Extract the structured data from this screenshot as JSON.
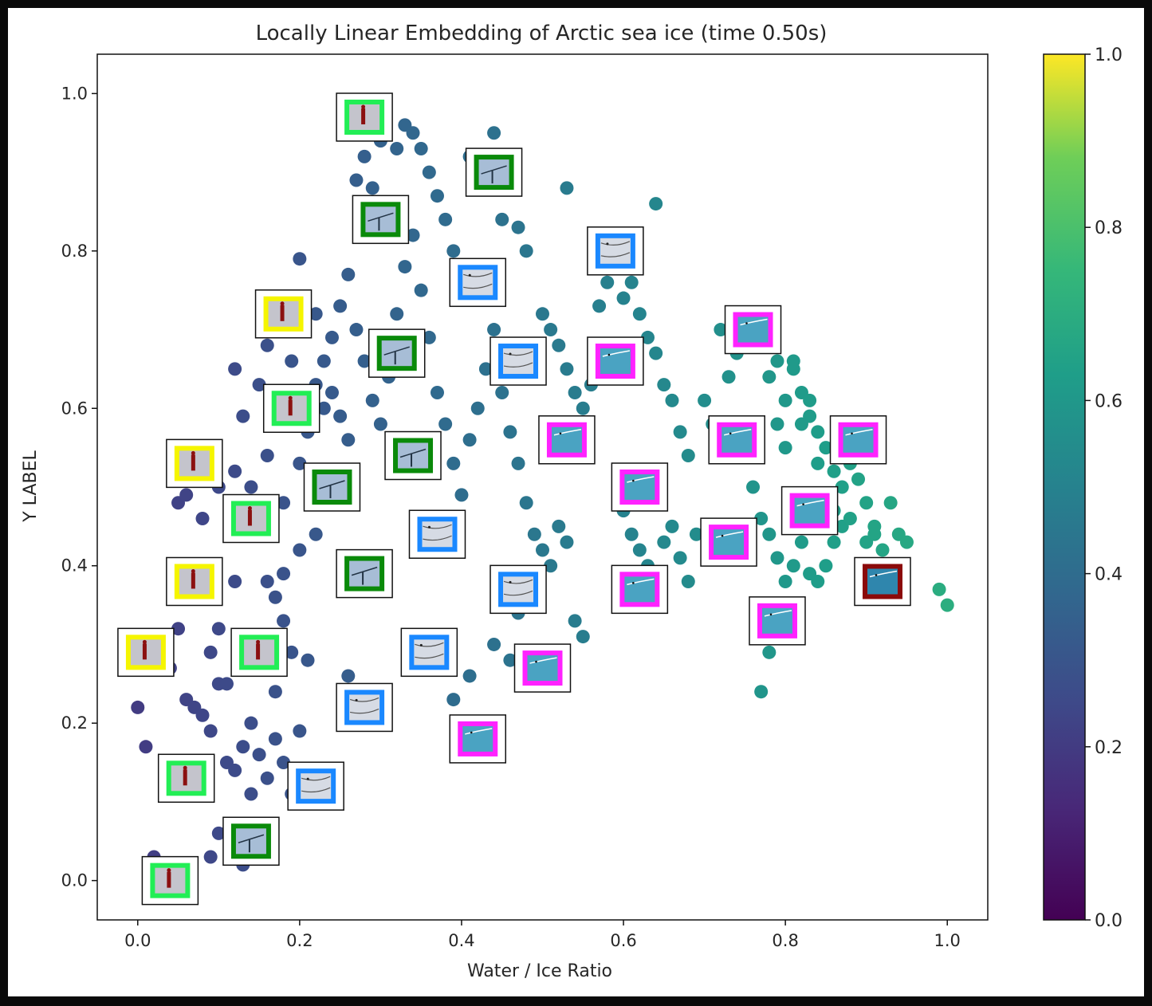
{
  "chart_data": {
    "type": "scatter",
    "title": "Locally Linear Embedding of Arctic sea ice (time 0.50s)",
    "xlabel": "Water / Ice Ratio",
    "ylabel": "Y LABEL",
    "xlim": [
      -0.05,
      1.05
    ],
    "ylim": [
      -0.05,
      1.05
    ],
    "xticks": [
      "0.0",
      "0.2",
      "0.4",
      "0.6",
      "0.8",
      "1.0"
    ],
    "yticks": [
      "0.0",
      "0.2",
      "0.4",
      "0.6",
      "0.8",
      "1.0"
    ],
    "colormap": "viridis",
    "colorbar": {
      "range": [
        0,
        1
      ],
      "ticks": [
        "0.0",
        "0.2",
        "0.4",
        "0.6",
        "0.8",
        "1.0"
      ]
    },
    "grid": false,
    "legend": "none",
    "thumbnail_kinds": {
      "person-green": {
        "frame": "#22ee55",
        "bg": "#c4c4cc",
        "figure": "#8b1010"
      },
      "person-yellow": {
        "frame": "#f5f500",
        "bg": "#c4c4cc",
        "figure": "#8b1010"
      },
      "seal-darkgreen": {
        "frame": "#0a8a0a",
        "bg": "#a7bdd6",
        "figure": "#223344"
      },
      "ice-blue": {
        "frame": "#1a88ff",
        "bg": "#d6dbe4",
        "figure": "#555555"
      },
      "water-magenta": {
        "frame": "#ff22ff",
        "bg": "#4aa3c2",
        "figure": "#ffffff"
      },
      "water-maroon": {
        "frame": "#8b0a0a",
        "bg": "#2f86ad",
        "figure": "#ffffff"
      }
    },
    "thumbnails": [
      {
        "x": 0.28,
        "y": 0.97,
        "kind": "person-green"
      },
      {
        "x": 0.44,
        "y": 0.9,
        "kind": "seal-darkgreen"
      },
      {
        "x": 0.3,
        "y": 0.84,
        "kind": "seal-darkgreen"
      },
      {
        "x": 0.59,
        "y": 0.8,
        "kind": "ice-blue"
      },
      {
        "x": 0.42,
        "y": 0.76,
        "kind": "ice-blue"
      },
      {
        "x": 0.18,
        "y": 0.72,
        "kind": "person-yellow"
      },
      {
        "x": 0.76,
        "y": 0.7,
        "kind": "water-magenta"
      },
      {
        "x": 0.32,
        "y": 0.67,
        "kind": "seal-darkgreen"
      },
      {
        "x": 0.59,
        "y": 0.66,
        "kind": "water-magenta"
      },
      {
        "x": 0.47,
        "y": 0.66,
        "kind": "ice-blue"
      },
      {
        "x": 0.19,
        "y": 0.6,
        "kind": "person-green"
      },
      {
        "x": 0.53,
        "y": 0.56,
        "kind": "water-magenta"
      },
      {
        "x": 0.74,
        "y": 0.56,
        "kind": "water-magenta"
      },
      {
        "x": 0.89,
        "y": 0.56,
        "kind": "water-magenta"
      },
      {
        "x": 0.07,
        "y": 0.53,
        "kind": "person-yellow"
      },
      {
        "x": 0.34,
        "y": 0.54,
        "kind": "seal-darkgreen"
      },
      {
        "x": 0.24,
        "y": 0.5,
        "kind": "seal-darkgreen"
      },
      {
        "x": 0.62,
        "y": 0.5,
        "kind": "water-magenta"
      },
      {
        "x": 0.83,
        "y": 0.47,
        "kind": "water-magenta"
      },
      {
        "x": 0.14,
        "y": 0.46,
        "kind": "person-green"
      },
      {
        "x": 0.37,
        "y": 0.44,
        "kind": "ice-blue"
      },
      {
        "x": 0.73,
        "y": 0.43,
        "kind": "water-magenta"
      },
      {
        "x": 0.28,
        "y": 0.39,
        "kind": "seal-darkgreen"
      },
      {
        "x": 0.92,
        "y": 0.38,
        "kind": "water-maroon"
      },
      {
        "x": 0.07,
        "y": 0.38,
        "kind": "person-yellow"
      },
      {
        "x": 0.47,
        "y": 0.37,
        "kind": "ice-blue"
      },
      {
        "x": 0.62,
        "y": 0.37,
        "kind": "water-magenta"
      },
      {
        "x": 0.79,
        "y": 0.33,
        "kind": "water-magenta"
      },
      {
        "x": 0.01,
        "y": 0.29,
        "kind": "person-yellow"
      },
      {
        "x": 0.36,
        "y": 0.29,
        "kind": "ice-blue"
      },
      {
        "x": 0.15,
        "y": 0.29,
        "kind": "person-green"
      },
      {
        "x": 0.5,
        "y": 0.27,
        "kind": "water-magenta"
      },
      {
        "x": 0.28,
        "y": 0.22,
        "kind": "ice-blue"
      },
      {
        "x": 0.42,
        "y": 0.18,
        "kind": "water-magenta"
      },
      {
        "x": 0.06,
        "y": 0.13,
        "kind": "person-green"
      },
      {
        "x": 0.22,
        "y": 0.12,
        "kind": "ice-blue"
      },
      {
        "x": 0.14,
        "y": 0.05,
        "kind": "seal-darkgreen"
      },
      {
        "x": 0.04,
        "y": 0.0,
        "kind": "person-green"
      }
    ],
    "points": [
      [
        0.0,
        0.22
      ],
      [
        0.01,
        0.17
      ],
      [
        0.04,
        0.27
      ],
      [
        0.05,
        0.32
      ],
      [
        0.06,
        0.23
      ],
      [
        0.07,
        0.22
      ],
      [
        0.08,
        0.21
      ],
      [
        0.09,
        0.19
      ],
      [
        0.1,
        0.25
      ],
      [
        0.11,
        0.15
      ],
      [
        0.12,
        0.14
      ],
      [
        0.13,
        0.17
      ],
      [
        0.14,
        0.2
      ],
      [
        0.15,
        0.16
      ],
      [
        0.16,
        0.13
      ],
      [
        0.17,
        0.18
      ],
      [
        0.18,
        0.15
      ],
      [
        0.19,
        0.11
      ],
      [
        0.2,
        0.19
      ],
      [
        0.14,
        0.11
      ],
      [
        0.1,
        0.06
      ],
      [
        0.09,
        0.03
      ],
      [
        0.13,
        0.02
      ],
      [
        0.02,
        0.03
      ],
      [
        0.09,
        0.29
      ],
      [
        0.1,
        0.32
      ],
      [
        0.11,
        0.25
      ],
      [
        0.13,
        0.3
      ],
      [
        0.15,
        0.27
      ],
      [
        0.17,
        0.24
      ],
      [
        0.19,
        0.29
      ],
      [
        0.21,
        0.28
      ],
      [
        0.18,
        0.33
      ],
      [
        0.16,
        0.38
      ],
      [
        0.12,
        0.38
      ],
      [
        0.17,
        0.36
      ],
      [
        0.18,
        0.39
      ],
      [
        0.2,
        0.42
      ],
      [
        0.22,
        0.44
      ],
      [
        0.05,
        0.48
      ],
      [
        0.06,
        0.49
      ],
      [
        0.08,
        0.46
      ],
      [
        0.1,
        0.5
      ],
      [
        0.12,
        0.52
      ],
      [
        0.14,
        0.5
      ],
      [
        0.16,
        0.54
      ],
      [
        0.18,
        0.48
      ],
      [
        0.2,
        0.53
      ],
      [
        0.21,
        0.57
      ],
      [
        0.13,
        0.59
      ],
      [
        0.12,
        0.65
      ],
      [
        0.15,
        0.63
      ],
      [
        0.16,
        0.68
      ],
      [
        0.19,
        0.66
      ],
      [
        0.2,
        0.79
      ],
      [
        0.22,
        0.72
      ],
      [
        0.23,
        0.66
      ],
      [
        0.24,
        0.62
      ],
      [
        0.25,
        0.59
      ],
      [
        0.26,
        0.56
      ],
      [
        0.23,
        0.6
      ],
      [
        0.22,
        0.63
      ],
      [
        0.24,
        0.69
      ],
      [
        0.25,
        0.73
      ],
      [
        0.26,
        0.77
      ],
      [
        0.27,
        0.7
      ],
      [
        0.28,
        0.66
      ],
      [
        0.29,
        0.61
      ],
      [
        0.3,
        0.58
      ],
      [
        0.31,
        0.64
      ],
      [
        0.32,
        0.72
      ],
      [
        0.33,
        0.78
      ],
      [
        0.34,
        0.82
      ],
      [
        0.35,
        0.75
      ],
      [
        0.36,
        0.69
      ],
      [
        0.37,
        0.62
      ],
      [
        0.38,
        0.58
      ],
      [
        0.39,
        0.53
      ],
      [
        0.4,
        0.49
      ],
      [
        0.41,
        0.56
      ],
      [
        0.42,
        0.6
      ],
      [
        0.43,
        0.65
      ],
      [
        0.44,
        0.7
      ],
      [
        0.45,
        0.62
      ],
      [
        0.46,
        0.57
      ],
      [
        0.47,
        0.53
      ],
      [
        0.48,
        0.48
      ],
      [
        0.49,
        0.44
      ],
      [
        0.5,
        0.42
      ],
      [
        0.51,
        0.4
      ],
      [
        0.52,
        0.45
      ],
      [
        0.53,
        0.43
      ],
      [
        0.54,
        0.33
      ],
      [
        0.55,
        0.31
      ],
      [
        0.44,
        0.3
      ],
      [
        0.47,
        0.34
      ],
      [
        0.46,
        0.28
      ],
      [
        0.39,
        0.23
      ],
      [
        0.41,
        0.26
      ],
      [
        0.26,
        0.26
      ],
      [
        0.27,
        0.89
      ],
      [
        0.28,
        0.92
      ],
      [
        0.29,
        0.88
      ],
      [
        0.3,
        0.94
      ],
      [
        0.32,
        0.93
      ],
      [
        0.33,
        0.96
      ],
      [
        0.34,
        0.95
      ],
      [
        0.35,
        0.93
      ],
      [
        0.36,
        0.9
      ],
      [
        0.37,
        0.87
      ],
      [
        0.38,
        0.84
      ],
      [
        0.39,
        0.8
      ],
      [
        0.4,
        0.77
      ],
      [
        0.41,
        0.92
      ],
      [
        0.43,
        0.88
      ],
      [
        0.44,
        0.95
      ],
      [
        0.45,
        0.84
      ],
      [
        0.47,
        0.83
      ],
      [
        0.48,
        0.8
      ],
      [
        0.5,
        0.72
      ],
      [
        0.51,
        0.7
      ],
      [
        0.52,
        0.68
      ],
      [
        0.53,
        0.65
      ],
      [
        0.54,
        0.62
      ],
      [
        0.55,
        0.6
      ],
      [
        0.56,
        0.63
      ],
      [
        0.57,
        0.67
      ],
      [
        0.53,
        0.88
      ],
      [
        0.57,
        0.73
      ],
      [
        0.58,
        0.76
      ],
      [
        0.6,
        0.74
      ],
      [
        0.61,
        0.76
      ],
      [
        0.62,
        0.72
      ],
      [
        0.63,
        0.69
      ],
      [
        0.64,
        0.67
      ],
      [
        0.65,
        0.63
      ],
      [
        0.66,
        0.61
      ],
      [
        0.67,
        0.57
      ],
      [
        0.68,
        0.54
      ],
      [
        0.64,
        0.86
      ],
      [
        0.6,
        0.47
      ],
      [
        0.61,
        0.44
      ],
      [
        0.62,
        0.42
      ],
      [
        0.63,
        0.4
      ],
      [
        0.64,
        0.37
      ],
      [
        0.65,
        0.43
      ],
      [
        0.66,
        0.45
      ],
      [
        0.67,
        0.41
      ],
      [
        0.68,
        0.38
      ],
      [
        0.69,
        0.44
      ],
      [
        0.7,
        0.61
      ],
      [
        0.71,
        0.58
      ],
      [
        0.72,
        0.7
      ],
      [
        0.73,
        0.64
      ],
      [
        0.74,
        0.67
      ],
      [
        0.75,
        0.55
      ],
      [
        0.76,
        0.5
      ],
      [
        0.77,
        0.46
      ],
      [
        0.78,
        0.44
      ],
      [
        0.79,
        0.41
      ],
      [
        0.8,
        0.38
      ],
      [
        0.81,
        0.4
      ],
      [
        0.82,
        0.43
      ],
      [
        0.83,
        0.39
      ],
      [
        0.84,
        0.38
      ],
      [
        0.85,
        0.4
      ],
      [
        0.86,
        0.43
      ],
      [
        0.87,
        0.45
      ],
      [
        0.78,
        0.29
      ],
      [
        0.77,
        0.24
      ],
      [
        0.78,
        0.64
      ],
      [
        0.79,
        0.66
      ],
      [
        0.8,
        0.61
      ],
      [
        0.81,
        0.65
      ],
      [
        0.82,
        0.62
      ],
      [
        0.83,
        0.59
      ],
      [
        0.84,
        0.57
      ],
      [
        0.85,
        0.55
      ],
      [
        0.86,
        0.52
      ],
      [
        0.87,
        0.5
      ],
      [
        0.88,
        0.53
      ],
      [
        0.89,
        0.51
      ],
      [
        0.9,
        0.48
      ],
      [
        0.91,
        0.45
      ],
      [
        0.92,
        0.42
      ],
      [
        0.93,
        0.48
      ],
      [
        0.94,
        0.44
      ],
      [
        0.95,
        0.43
      ],
      [
        0.99,
        0.37
      ],
      [
        1.0,
        0.35
      ],
      [
        0.81,
        0.66
      ],
      [
        0.82,
        0.58
      ],
      [
        0.83,
        0.61
      ],
      [
        0.8,
        0.55
      ],
      [
        0.79,
        0.58
      ],
      [
        0.84,
        0.53
      ],
      [
        0.86,
        0.47
      ],
      [
        0.88,
        0.46
      ],
      [
        0.9,
        0.43
      ],
      [
        0.91,
        0.44
      ]
    ]
  }
}
